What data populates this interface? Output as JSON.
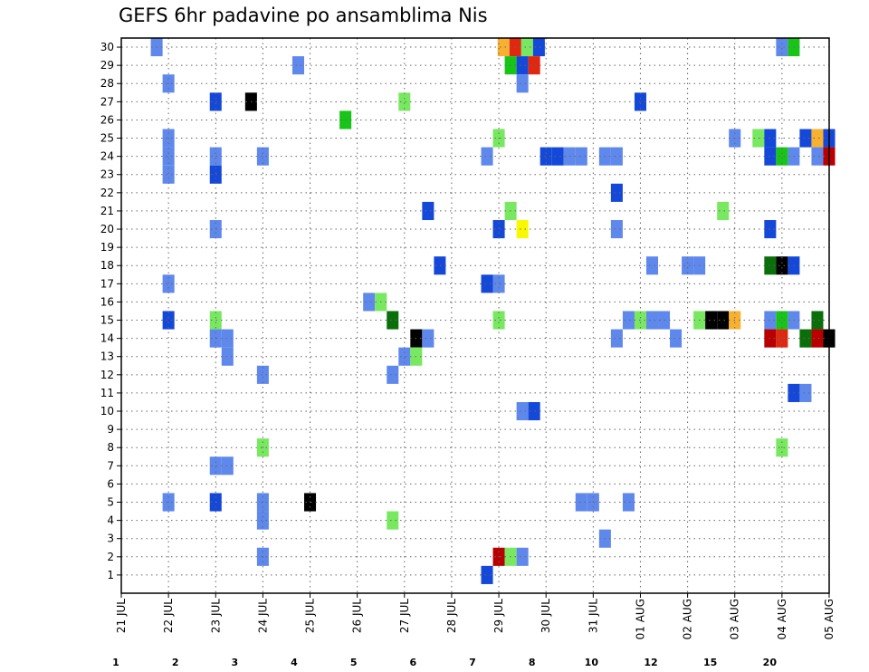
{
  "chart_data": {
    "type": "heatmap",
    "title": "GEFS 6hr padavine po ansamblima Nis",
    "xlabel": "",
    "ylabel": "",
    "x_ticks": [
      "21 JUL",
      "22 JUL",
      "23 JUL",
      "24 JUL",
      "25 JUL",
      "26 JUL",
      "27 JUL",
      "28 JUL",
      "29 JUL",
      "30 JUL",
      "31 JUL",
      "01 AUG",
      "02 AUG",
      "03 AUG",
      "04 AUG",
      "05 AUG"
    ],
    "y_ticks": [
      "1",
      "2",
      "3",
      "4",
      "5",
      "6",
      "7",
      "8",
      "9",
      "10",
      "11",
      "12",
      "13",
      "14",
      "15",
      "16",
      "17",
      "18",
      "19",
      "20",
      "21",
      "22",
      "23",
      "24",
      "25",
      "26",
      "27",
      "28",
      "29",
      "30"
    ],
    "xlim_days": [
      0,
      15
    ],
    "ylim": [
      0,
      30.5
    ],
    "grid": "dotted",
    "colorbar": {
      "labels": [
        "1",
        "2",
        "3",
        "4",
        "5",
        "6",
        "7",
        "8",
        "10",
        "12",
        "15",
        "20"
      ],
      "colors": [
        "#b8c8f8",
        "#5f88ec",
        "#1448d8",
        "#78e860",
        "#18c418",
        "#0a6e0a",
        "#f8f800",
        "#f8b030",
        "#f07810",
        "#e02810",
        "#b80000",
        "#6e0000"
      ]
    },
    "points": [
      [
        0.75,
        30,
        1
      ],
      [
        8.1,
        30,
        7
      ],
      [
        8.35,
        30,
        9
      ],
      [
        8.6,
        30,
        3
      ],
      [
        8.85,
        30,
        2
      ],
      [
        14.0,
        30,
        1
      ],
      [
        14.25,
        30,
        4
      ],
      [
        3.75,
        29,
        1
      ],
      [
        8.25,
        29,
        4
      ],
      [
        8.5,
        29,
        2
      ],
      [
        8.75,
        29,
        9
      ],
      [
        1.0,
        28,
        1
      ],
      [
        8.5,
        28,
        1
      ],
      [
        2.0,
        27,
        2
      ],
      [
        2.75,
        27,
        12
      ],
      [
        6.0,
        27,
        3
      ],
      [
        11.0,
        27,
        2
      ],
      [
        4.75,
        26,
        4
      ],
      [
        1.0,
        25,
        1
      ],
      [
        8.0,
        25,
        3
      ],
      [
        13.0,
        25,
        1
      ],
      [
        13.5,
        25,
        3
      ],
      [
        13.75,
        25,
        2
      ],
      [
        14.5,
        25,
        2
      ],
      [
        14.75,
        25,
        7
      ],
      [
        15.0,
        25,
        2
      ],
      [
        1.0,
        24,
        1
      ],
      [
        2.0,
        24,
        1
      ],
      [
        3.0,
        24,
        1
      ],
      [
        7.75,
        24,
        1
      ],
      [
        9.0,
        24,
        2
      ],
      [
        9.25,
        24,
        2
      ],
      [
        9.5,
        24,
        1
      ],
      [
        9.75,
        24,
        1
      ],
      [
        10.25,
        24,
        1
      ],
      [
        10.5,
        24,
        1
      ],
      [
        13.75,
        24,
        2
      ],
      [
        14.0,
        24,
        4
      ],
      [
        14.25,
        24,
        1
      ],
      [
        14.75,
        24,
        1
      ],
      [
        15.0,
        24,
        10
      ],
      [
        1.0,
        23,
        1
      ],
      [
        2.0,
        23,
        2
      ],
      [
        10.5,
        22,
        2
      ],
      [
        6.5,
        21,
        2
      ],
      [
        8.25,
        21,
        3
      ],
      [
        12.75,
        21,
        3
      ],
      [
        2.0,
        20,
        1
      ],
      [
        8.0,
        20,
        2
      ],
      [
        8.5,
        20,
        6
      ],
      [
        10.5,
        20,
        1
      ],
      [
        13.75,
        20,
        2
      ],
      [
        6.75,
        18,
        2
      ],
      [
        11.25,
        18,
        1
      ],
      [
        12.0,
        18,
        1
      ],
      [
        12.25,
        18,
        1
      ],
      [
        13.75,
        18,
        5
      ],
      [
        14.0,
        18,
        12
      ],
      [
        14.25,
        18,
        2
      ],
      [
        1.0,
        17,
        1
      ],
      [
        7.75,
        17,
        2
      ],
      [
        8.0,
        17,
        1
      ],
      [
        5.25,
        16,
        1
      ],
      [
        5.5,
        16,
        3
      ],
      [
        1.0,
        15,
        2
      ],
      [
        2.0,
        15,
        3
      ],
      [
        5.75,
        15,
        5
      ],
      [
        8.0,
        15,
        3
      ],
      [
        10.75,
        15,
        1
      ],
      [
        11.0,
        15,
        3
      ],
      [
        11.25,
        15,
        1
      ],
      [
        11.5,
        15,
        1
      ],
      [
        12.25,
        15,
        3
      ],
      [
        12.5,
        15,
        14
      ],
      [
        12.75,
        15,
        12
      ],
      [
        13.0,
        15,
        7
      ],
      [
        13.75,
        15,
        1
      ],
      [
        14.0,
        15,
        4
      ],
      [
        14.25,
        15,
        1
      ],
      [
        14.75,
        15,
        5
      ],
      [
        2.0,
        14,
        1
      ],
      [
        2.25,
        14,
        1
      ],
      [
        6.25,
        14,
        13
      ],
      [
        6.5,
        14,
        1
      ],
      [
        10.5,
        14,
        1
      ],
      [
        11.75,
        14,
        1
      ],
      [
        13.75,
        14,
        10
      ],
      [
        14.0,
        14,
        9
      ],
      [
        14.5,
        14,
        5
      ],
      [
        14.75,
        14,
        10
      ],
      [
        15.0,
        14,
        12
      ],
      [
        2.25,
        13,
        1
      ],
      [
        6.0,
        13,
        1
      ],
      [
        6.25,
        13,
        3
      ],
      [
        3.0,
        12,
        1
      ],
      [
        5.75,
        12,
        1
      ],
      [
        14.25,
        11,
        2
      ],
      [
        14.5,
        11,
        1
      ],
      [
        8.5,
        10,
        1
      ],
      [
        8.75,
        10,
        2
      ],
      [
        3.0,
        8,
        3
      ],
      [
        14.0,
        8,
        3
      ],
      [
        2.0,
        7,
        1
      ],
      [
        2.25,
        7,
        1
      ],
      [
        1.0,
        5,
        1
      ],
      [
        2.0,
        5,
        2
      ],
      [
        3.0,
        5,
        1
      ],
      [
        4.0,
        5,
        13
      ],
      [
        9.75,
        5,
        1
      ],
      [
        10.0,
        5,
        1
      ],
      [
        10.75,
        5,
        1
      ],
      [
        3.0,
        4,
        1
      ],
      [
        5.75,
        4,
        3
      ],
      [
        10.25,
        3,
        1
      ],
      [
        3.0,
        2,
        1
      ],
      [
        8.0,
        2,
        10
      ],
      [
        8.25,
        2,
        3
      ],
      [
        8.5,
        2,
        1
      ],
      [
        7.75,
        1,
        2
      ]
    ]
  }
}
